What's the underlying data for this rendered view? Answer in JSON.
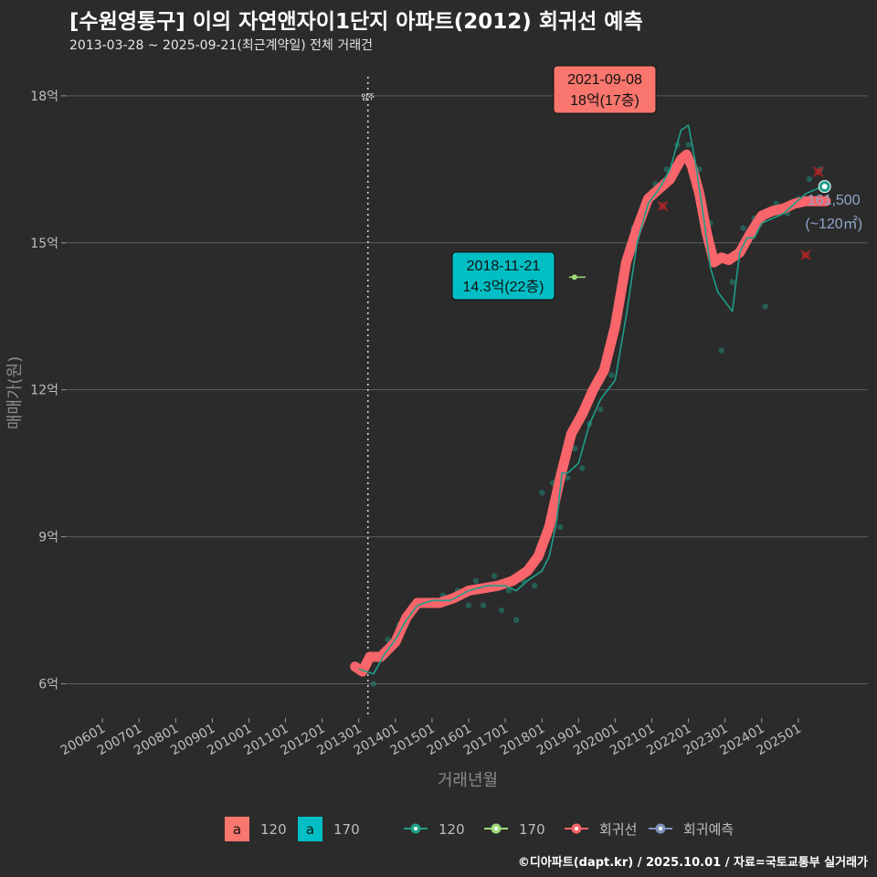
{
  "title": "[수원영통구] 이의 자연앤자이1단지 아파트(2012) 회귀선 예측",
  "subtitle": "2013-03-28 ~ 2025-09-21(최근계약일) 전체 거래건",
  "footer": "©디아파트(dapt.kr) / 2025.10.01 / 자료=국토교통부 실거래가",
  "colors": {
    "s120": "#f8766d",
    "s170": "#00bfc4",
    "trend120": "#1f9e89",
    "dot170": "#9ddc7a",
    "regression": "#f8656a",
    "forecast": "#7f95bd",
    "outlier": "#b32424"
  },
  "chart_data": {
    "type": "line",
    "xlabel": "거래년월",
    "ylabel": "매매가(원)",
    "x_ticks": [
      "200601",
      "200701",
      "200801",
      "200901",
      "201001",
      "201101",
      "201201",
      "201301",
      "201401",
      "201501",
      "201601",
      "201701",
      "201801",
      "201901",
      "202001",
      "202101",
      "202201",
      "202301",
      "202401",
      "202501"
    ],
    "y_ticks": [
      {
        "value": 6,
        "label": "6억"
      },
      {
        "value": 9,
        "label": "9억"
      },
      {
        "value": 12,
        "label": "12억"
      },
      {
        "value": 15,
        "label": "15억"
      },
      {
        "value": 18,
        "label": "18억"
      }
    ],
    "ylim": [
      5.3,
      18.8
    ],
    "xlim": [
      2005.0,
      2026.9
    ],
    "vline": {
      "x": 2013.25,
      "label": "입주"
    },
    "annotations": [
      {
        "x": 2021.69,
        "y": 18.0,
        "date": "2021-09-08",
        "value": "18억(17층)",
        "series": "120"
      },
      {
        "x": 2018.89,
        "y": 14.3,
        "date": "2018-11-21",
        "value": "14.3억(22층)",
        "series": "170"
      }
    ],
    "last_value": {
      "x": 2025.72,
      "y": 16.15,
      "label": "161,500",
      "sublabel": "(~120㎡)"
    },
    "series": [
      {
        "name": "회귀선",
        "kind": "regression",
        "x": [
          2012.9,
          2013.1,
          2013.3,
          2013.6,
          2014.0,
          2014.3,
          2014.6,
          2014.9,
          2015.2,
          2015.6,
          2016.0,
          2016.4,
          2016.8,
          2017.2,
          2017.6,
          2017.9,
          2018.2,
          2018.5,
          2018.8,
          2019.1,
          2019.4,
          2019.7,
          2020.0,
          2020.3,
          2020.6,
          2020.9,
          2021.2,
          2021.5,
          2021.8,
          2021.95,
          2022.1,
          2022.3,
          2022.5,
          2022.7,
          2022.9,
          2023.1,
          2023.4,
          2023.7,
          2024.0,
          2024.3,
          2024.6,
          2024.9,
          2025.2,
          2025.5,
          2025.75
        ],
        "y": [
          6.35,
          6.25,
          6.55,
          6.55,
          6.85,
          7.35,
          7.65,
          7.65,
          7.65,
          7.75,
          7.9,
          7.95,
          8.0,
          8.1,
          8.3,
          8.6,
          9.2,
          10.2,
          11.1,
          11.5,
          12.0,
          12.4,
          13.3,
          14.6,
          15.3,
          15.9,
          16.1,
          16.3,
          16.7,
          16.8,
          16.55,
          16.0,
          15.2,
          14.6,
          14.7,
          14.65,
          14.8,
          15.2,
          15.55,
          15.65,
          15.7,
          15.8,
          15.85,
          15.85,
          15.85
        ]
      },
      {
        "name": "120",
        "kind": "trend",
        "x": [
          2013.0,
          2013.4,
          2013.7,
          2014.0,
          2014.3,
          2014.6,
          2015.0,
          2015.5,
          2016.0,
          2016.5,
          2017.0,
          2017.3,
          2017.6,
          2018.0,
          2018.2,
          2018.4,
          2018.55,
          2018.7,
          2018.85,
          2019.0,
          2019.3,
          2019.6,
          2020.0,
          2020.3,
          2020.6,
          2020.9,
          2021.2,
          2021.5,
          2021.8,
          2022.0,
          2022.2,
          2022.4,
          2022.6,
          2022.8,
          2023.0,
          2023.2,
          2023.4,
          2023.6,
          2023.8,
          2024.0,
          2024.3,
          2024.6,
          2024.9,
          2025.2,
          2025.5,
          2025.72
        ],
        "y": [
          6.3,
          6.2,
          6.6,
          6.9,
          7.3,
          7.6,
          7.7,
          7.7,
          7.9,
          8.0,
          8.0,
          7.9,
          8.1,
          8.3,
          8.6,
          9.3,
          10.3,
          10.3,
          10.4,
          10.5,
          11.3,
          11.8,
          12.2,
          13.5,
          15.0,
          15.8,
          16.1,
          16.5,
          17.3,
          17.4,
          16.6,
          15.6,
          14.5,
          14.0,
          13.8,
          13.6,
          14.8,
          15.1,
          15.1,
          15.4,
          15.5,
          15.6,
          15.8,
          16.0,
          16.1,
          16.15
        ]
      },
      {
        "name": "120",
        "kind": "scatter",
        "x": [
          2013.2,
          2013.4,
          2013.8,
          2014.1,
          2014.5,
          2014.8,
          2015.0,
          2015.3,
          2015.7,
          2016.0,
          2016.2,
          2016.4,
          2016.7,
          2016.9,
          2017.1,
          2017.3,
          2017.5,
          2017.8,
          2018.0,
          2018.3,
          2018.5,
          2018.7,
          2018.9,
          2019.1,
          2019.3,
          2019.6,
          2019.9,
          2020.2,
          2020.5,
          2020.8,
          2021.1,
          2021.4,
          2021.7,
          2022.0,
          2022.3,
          2022.6,
          2022.9,
          2023.2,
          2023.5,
          2023.8,
          2024.1,
          2024.4,
          2024.7,
          2025.0,
          2025.3,
          2025.6
        ],
        "y": [
          6.4,
          6.0,
          6.9,
          7.2,
          7.5,
          7.6,
          7.7,
          7.8,
          7.9,
          7.6,
          8.1,
          7.6,
          8.2,
          7.5,
          7.9,
          7.3,
          8.1,
          8.0,
          9.9,
          10.1,
          9.2,
          10.2,
          10.8,
          10.4,
          11.3,
          11.6,
          12.3,
          14.2,
          15.3,
          15.7,
          16.2,
          16.5,
          17.0,
          17.0,
          16.5,
          15.4,
          12.8,
          14.2,
          15.3,
          15.5,
          13.7,
          15.8,
          15.6,
          15.9,
          16.3,
          16.5
        ]
      },
      {
        "name": "170",
        "kind": "point",
        "x": [
          2018.89
        ],
        "y": [
          14.3
        ]
      },
      {
        "name": "outlier",
        "kind": "cross",
        "x": [
          2021.3,
          2025.55,
          2025.2
        ],
        "y": [
          15.75,
          16.45,
          14.75
        ]
      },
      {
        "name": "회귀예측",
        "kind": "forecast",
        "x": [
          2025.72
        ],
        "y": [
          16.15
        ]
      }
    ],
    "legend": {
      "placement": "bottom",
      "fill": [
        {
          "key": "a",
          "label": "120",
          "color": "#f8766d"
        },
        {
          "key": "a",
          "label": "170",
          "color": "#00bfc4"
        }
      ],
      "lines": [
        {
          "label": "120",
          "color": "#1f9e89"
        },
        {
          "label": "170",
          "color": "#9ddc7a"
        },
        {
          "label": "회귀선",
          "color": "#f8656a"
        },
        {
          "label": "회귀예측",
          "color": "#7f95bd"
        }
      ]
    }
  }
}
